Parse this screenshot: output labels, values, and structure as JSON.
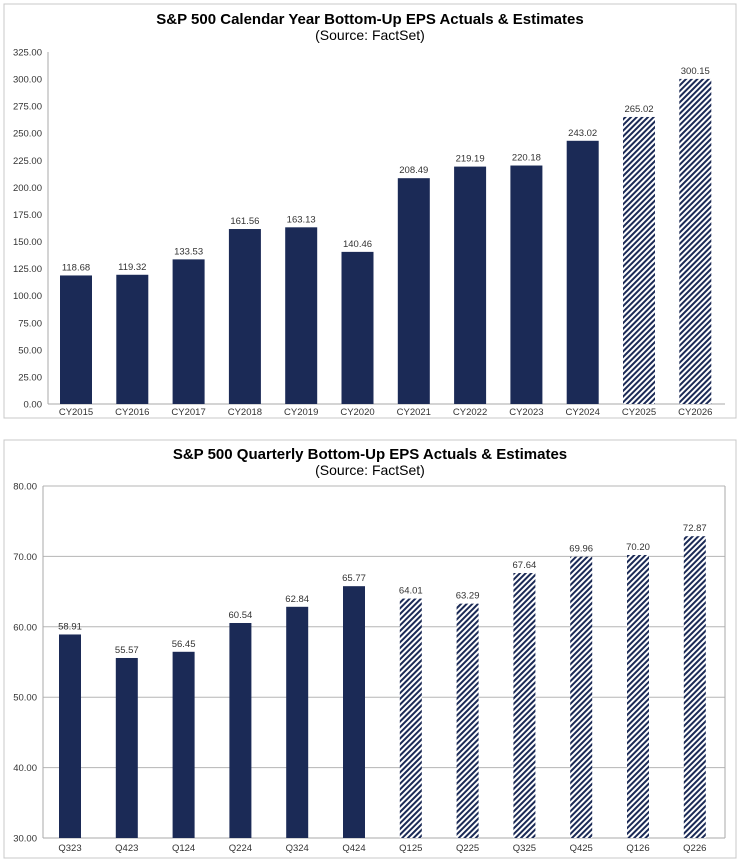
{
  "colors": {
    "actual": "#1b2a56",
    "estimate_hatch": "#1b2a56",
    "grid": "#b5b5b5"
  },
  "chart_data": [
    {
      "type": "bar",
      "title": "S&P 500 Calendar Year Bottom-Up EPS Actuals & Estimates",
      "subtitle": "(Source: FactSet)",
      "categories": [
        "CY2015",
        "CY2016",
        "CY2017",
        "CY2018",
        "CY2019",
        "CY2020",
        "CY2021",
        "CY2022",
        "CY2023",
        "CY2024",
        "CY2025",
        "CY2026"
      ],
      "values": [
        118.68,
        119.32,
        133.53,
        161.56,
        163.13,
        140.46,
        208.49,
        219.19,
        220.18,
        243.02,
        265.02,
        300.15
      ],
      "value_labels": [
        "118.68",
        "119.32",
        "133.53",
        "161.56",
        "163.13",
        "140.46",
        "208.49",
        "219.19",
        "220.18",
        "243.02",
        "265.02",
        "300.15"
      ],
      "estimate": [
        false,
        false,
        false,
        false,
        false,
        false,
        false,
        false,
        false,
        false,
        true,
        true
      ],
      "ylim": [
        0,
        325
      ],
      "yticks": [
        "0.00",
        "25.00",
        "50.00",
        "75.00",
        "100.00",
        "125.00",
        "150.00",
        "175.00",
        "200.00",
        "225.00",
        "250.00",
        "275.00",
        "300.00",
        "325.00"
      ],
      "grid": false,
      "legend": "none"
    },
    {
      "type": "bar",
      "title": "S&P 500 Quarterly  Bottom-Up EPS Actuals & Estimates",
      "subtitle": "(Source: FactSet)",
      "categories": [
        "Q323",
        "Q423",
        "Q124",
        "Q224",
        "Q324",
        "Q424",
        "Q125",
        "Q225",
        "Q325",
        "Q425",
        "Q126",
        "Q226"
      ],
      "values": [
        58.91,
        55.57,
        56.45,
        60.54,
        62.84,
        65.77,
        64.01,
        63.29,
        67.64,
        69.96,
        70.2,
        72.87
      ],
      "value_labels": [
        "58.91",
        "55.57",
        "56.45",
        "60.54",
        "62.84",
        "65.77",
        "64.01",
        "63.29",
        "67.64",
        "69.96",
        "70.20",
        "72.87"
      ],
      "estimate": [
        false,
        false,
        false,
        false,
        false,
        false,
        true,
        true,
        true,
        true,
        true,
        true
      ],
      "ylim": [
        30,
        80
      ],
      "yticks": [
        "30.00",
        "40.00",
        "50.00",
        "60.00",
        "70.00",
        "80.00"
      ],
      "grid": true,
      "legend": "none"
    }
  ]
}
